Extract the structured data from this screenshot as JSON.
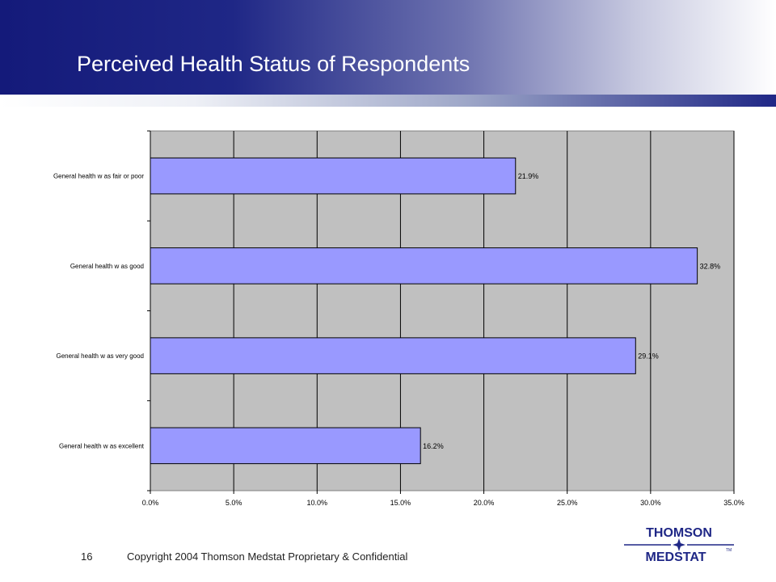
{
  "slide": {
    "title": "Perceived Health Status of Respondents",
    "page_number": "16",
    "copyright": "Copyright 2004 Thomson Medstat  Proprietary & Confidential"
  },
  "logo": {
    "line1": "THOMSON",
    "line2": "MEDSTAT",
    "tm": "TM"
  },
  "colors": {
    "bar": "#9999ff",
    "plot_background": "#c0c0c0",
    "header_dark": "#141a7a"
  },
  "chart_data": {
    "type": "bar",
    "orientation": "horizontal",
    "categories": [
      "General health w as fair or poor",
      "General health w as good",
      "General health w as very good",
      "General health w as excellent"
    ],
    "values": [
      21.9,
      32.8,
      29.1,
      16.2
    ],
    "data_labels": [
      "21.9%",
      "32.8%",
      "29.1%",
      "16.2%"
    ],
    "xlim": [
      0,
      35
    ],
    "xticks": [
      0,
      5,
      10,
      15,
      20,
      25,
      30,
      35
    ],
    "xtick_labels": [
      "0.0%",
      "5.0%",
      "10.0%",
      "15.0%",
      "20.0%",
      "25.0%",
      "30.0%",
      "35.0%"
    ],
    "grid": true,
    "legend": false
  }
}
